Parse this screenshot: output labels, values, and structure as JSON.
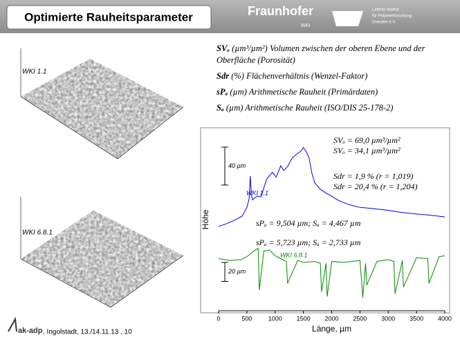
{
  "header": {
    "title": "Optimierte Rauheitsparameter",
    "logo1": "Fraunhofer",
    "logo1_sub": "WKI",
    "logo2": [
      "Leibniz-Institut",
      "für Polymerforschung",
      "Dresden e.V."
    ]
  },
  "samples": [
    "WKI 1.1",
    "WKI 6.8.1"
  ],
  "definitions": [
    {
      "symbol": "SVₒ",
      "text": "(µm³/µm²) Volumen zwischen der oberen Ebene und der Oberfläche (Porosität)"
    },
    {
      "symbol": "Sdr",
      "text": "(%) Flächenverhältnis (Wenzel-Faktor)"
    },
    {
      "symbol": "sPₐ",
      "text": "(µm) Arithmetische Rauheit (Primärdaten)"
    },
    {
      "symbol": "Sₐ",
      "text": "(µm) Arithmetische Rauheit (ISO/DIS 25-178-2)"
    }
  ],
  "chart_data": {
    "type": "line",
    "xlabel": "Länge, µm",
    "ylabel": "Höhe",
    "xlim": [
      0,
      4000
    ],
    "xticks": [
      0,
      500,
      1000,
      1500,
      2000,
      2500,
      3000,
      3500,
      4000
    ],
    "ylim": [
      0,
      193
    ],
    "series": [
      {
        "name": "WKI 1.1",
        "color": "#0000ee",
        "x": [
          0,
          150,
          300,
          420,
          500,
          540,
          560,
          580,
          600,
          680,
          750,
          850,
          950,
          1020,
          1100,
          1150,
          1220,
          1300,
          1380,
          1450,
          1500,
          1550,
          1600,
          1650,
          1700,
          1800,
          1900,
          2000,
          2100,
          2300,
          2500,
          2700,
          3000,
          3200,
          3500,
          3700,
          4000
        ],
        "values": [
          89,
          92,
          96,
          100,
          109,
          118,
          142,
          122,
          117,
          121,
          120,
          139,
          146,
          141,
          153,
          148,
          152,
          161,
          165,
          168,
          172,
          168,
          161,
          145,
          135,
          128,
          124,
          121,
          117,
          112,
          109,
          108,
          106,
          104,
          102,
          101,
          99
        ]
      },
      {
        "name": "WKI 6.8.1",
        "color": "#008800",
        "x": [
          0,
          200,
          400,
          500,
          600,
          700,
          720,
          800,
          900,
          1000,
          1100,
          1200,
          1220,
          1400,
          1500,
          1700,
          1800,
          1820,
          1900,
          1920,
          2000,
          2200,
          2500,
          2550,
          2600,
          2620,
          2800,
          3000,
          3100,
          3120,
          3250,
          3270,
          3500,
          3700,
          3720,
          3900,
          4000
        ],
        "values": [
          55,
          53,
          54,
          57,
          62,
          66,
          22,
          63,
          64,
          58,
          55,
          52,
          29,
          53,
          51,
          52,
          50,
          20,
          50,
          15,
          52,
          51,
          53,
          14,
          50,
          27,
          52,
          54,
          52,
          18,
          53,
          25,
          56,
          55,
          29,
          57,
          58
        ]
      }
    ],
    "annotations": [
      "SVₒ = 69,0 µm³/µm²",
      "SVₒ = 34,1 µm³/µm²",
      "Sdr = 1,9 % (r = 1,019)",
      "Sdr = 20,4 % (r = 1,204)",
      "sPₐ = 9,504 µm; Sₐ = 4,467 µm",
      "sPₐ = 5,723 µm; Sₐ = 2,733 µm"
    ],
    "scale_bars": [
      {
        "label": "40 µm",
        "value": 40
      },
      {
        "label": "20 µm",
        "value": 20
      }
    ]
  },
  "footer": {
    "logo": "ak-adp",
    "text": ", Ingolstadt, 13./14.11.13 , 10"
  }
}
